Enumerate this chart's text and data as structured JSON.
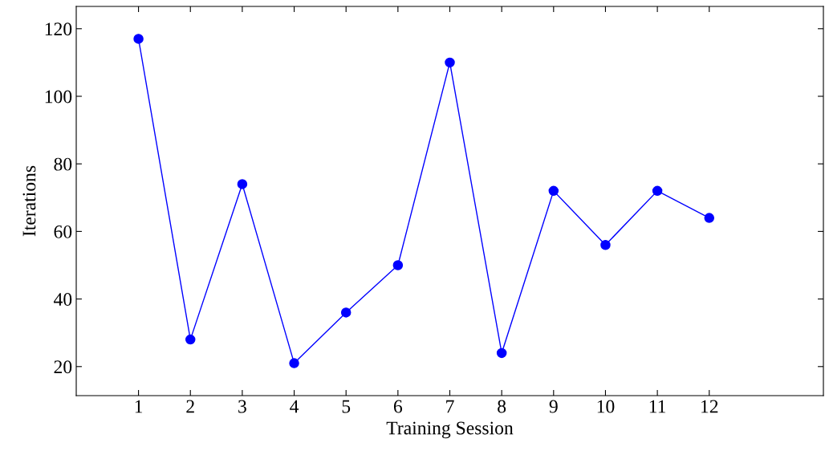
{
  "chart_data": {
    "type": "line",
    "xlabel": "Training Session",
    "ylabel": "Iterations",
    "x": [
      1,
      2,
      3,
      4,
      5,
      6,
      7,
      8,
      9,
      10,
      11,
      12
    ],
    "series": [
      {
        "color": "#0000ff",
        "values": [
          117,
          28,
          74,
          21,
          36,
          50,
          110,
          24,
          72,
          56,
          72,
          64
        ]
      }
    ],
    "xlim": [
      -0.2,
      14.2
    ],
    "ylim": [
      11.4,
      126.6
    ],
    "xticks": [
      1,
      2,
      3,
      4,
      5,
      6,
      7,
      8,
      9,
      10,
      11,
      12
    ],
    "yticks": [
      20,
      40,
      60,
      80,
      100,
      120
    ],
    "grid": false,
    "legend": false,
    "marker": "circle",
    "line_style": "solid"
  }
}
